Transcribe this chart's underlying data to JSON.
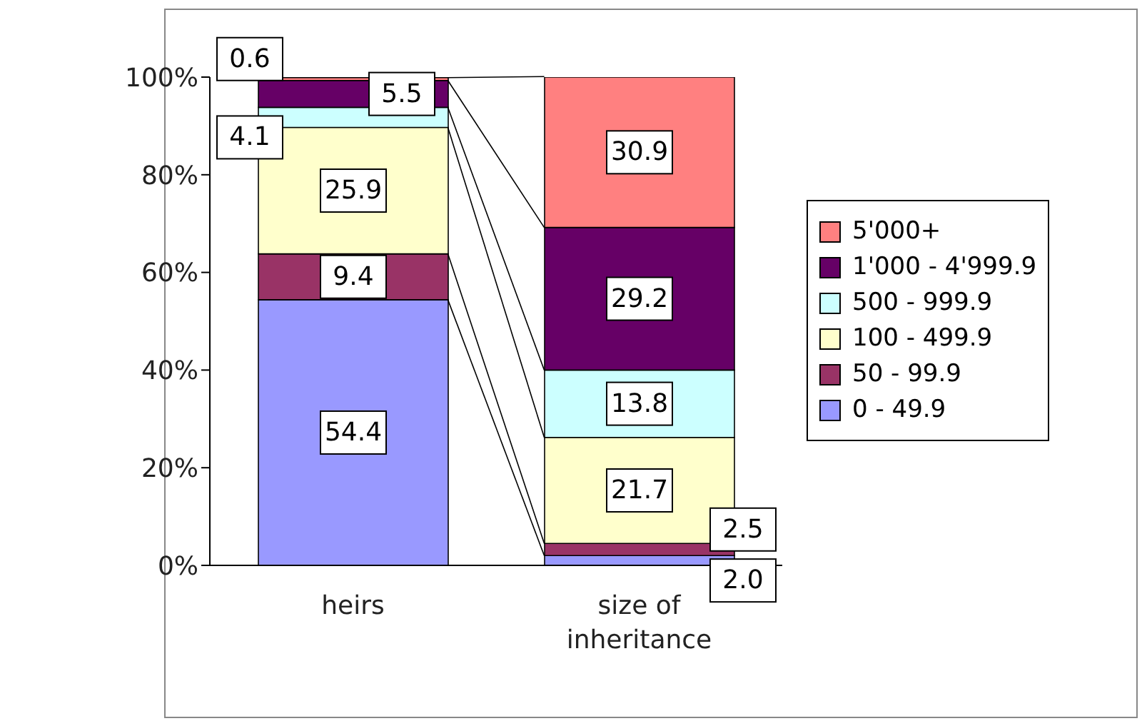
{
  "chart_data": {
    "type": "bar",
    "stacked": true,
    "categories": [
      "heirs",
      "size of inheritance"
    ],
    "series": [
      {
        "name": "0 - 49.9",
        "color": "#9999ff",
        "values": [
          54.4,
          2.0
        ],
        "value_labels": [
          "54.4",
          "2.0"
        ]
      },
      {
        "name": "50 - 99.9",
        "color": "#993366",
        "values": [
          9.4,
          2.5
        ],
        "value_labels": [
          "9.4",
          "2.5"
        ]
      },
      {
        "name": "100 - 499.9",
        "color": "#ffffcc",
        "values": [
          25.9,
          21.7
        ],
        "value_labels": [
          "25.9",
          "21.7"
        ]
      },
      {
        "name": "500 - 999.9",
        "color": "#ccffff",
        "values": [
          4.1,
          13.8
        ],
        "value_labels": [
          "4.1",
          "13.8"
        ]
      },
      {
        "name": "1'000 - 4'999.9",
        "color": "#660066",
        "values": [
          5.5,
          29.2
        ],
        "value_labels": [
          "5.5",
          "29.2"
        ]
      },
      {
        "name": "5'000+",
        "color": "#ff8080",
        "values": [
          0.6,
          30.9
        ],
        "value_labels": [
          "0.6",
          "30.9"
        ]
      }
    ],
    "ylim": [
      0,
      100
    ],
    "yticks": [
      {
        "value": 0,
        "label": "0%"
      },
      {
        "value": 20,
        "label": "20%"
      },
      {
        "value": 40,
        "label": "40%"
      },
      {
        "value": 60,
        "label": "60%"
      },
      {
        "value": 80,
        "label": "80%"
      },
      {
        "value": 100,
        "label": "100%"
      }
    ],
    "grid": false,
    "legend": "right"
  }
}
